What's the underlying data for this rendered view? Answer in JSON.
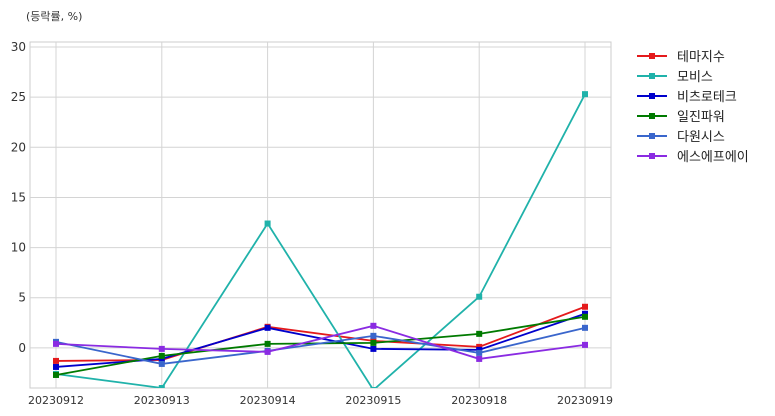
{
  "chart_data": {
    "type": "line",
    "unit_label": "(등락률, %)",
    "title": "",
    "xlabel": "",
    "ylabel": "",
    "categories": [
      "20230912",
      "20230913",
      "20230914",
      "20230915",
      "20230918",
      "20230919"
    ],
    "ylim": [
      -4,
      30.5
    ],
    "yticks": [
      0,
      5,
      10,
      15,
      20,
      25,
      30
    ],
    "grid": true,
    "legend_position": "right",
    "series": [
      {
        "name": "테마지수",
        "color": "#e41a1c",
        "values": [
          -1.3,
          -1.2,
          2.1,
          0.7,
          0.1,
          4.1
        ]
      },
      {
        "name": "모비스",
        "color": "#20b2aa",
        "values": [
          -2.6,
          -4.0,
          12.4,
          -4.2,
          5.1,
          25.3
        ]
      },
      {
        "name": "비츠로테크",
        "color": "#0000cc",
        "values": [
          -1.9,
          -1.1,
          2.0,
          -0.1,
          -0.2,
          3.4
        ]
      },
      {
        "name": "일진파워",
        "color": "#007a00",
        "values": [
          -2.7,
          -0.8,
          0.4,
          0.5,
          1.4,
          3.1
        ]
      },
      {
        "name": "다원시스",
        "color": "#3a66cc",
        "values": [
          0.6,
          -1.6,
          -0.3,
          1.2,
          -0.5,
          2.0
        ]
      },
      {
        "name": "에스에프에이",
        "color": "#8a2be2",
        "values": [
          0.4,
          -0.1,
          -0.4,
          2.2,
          -1.1,
          0.3
        ]
      }
    ]
  }
}
